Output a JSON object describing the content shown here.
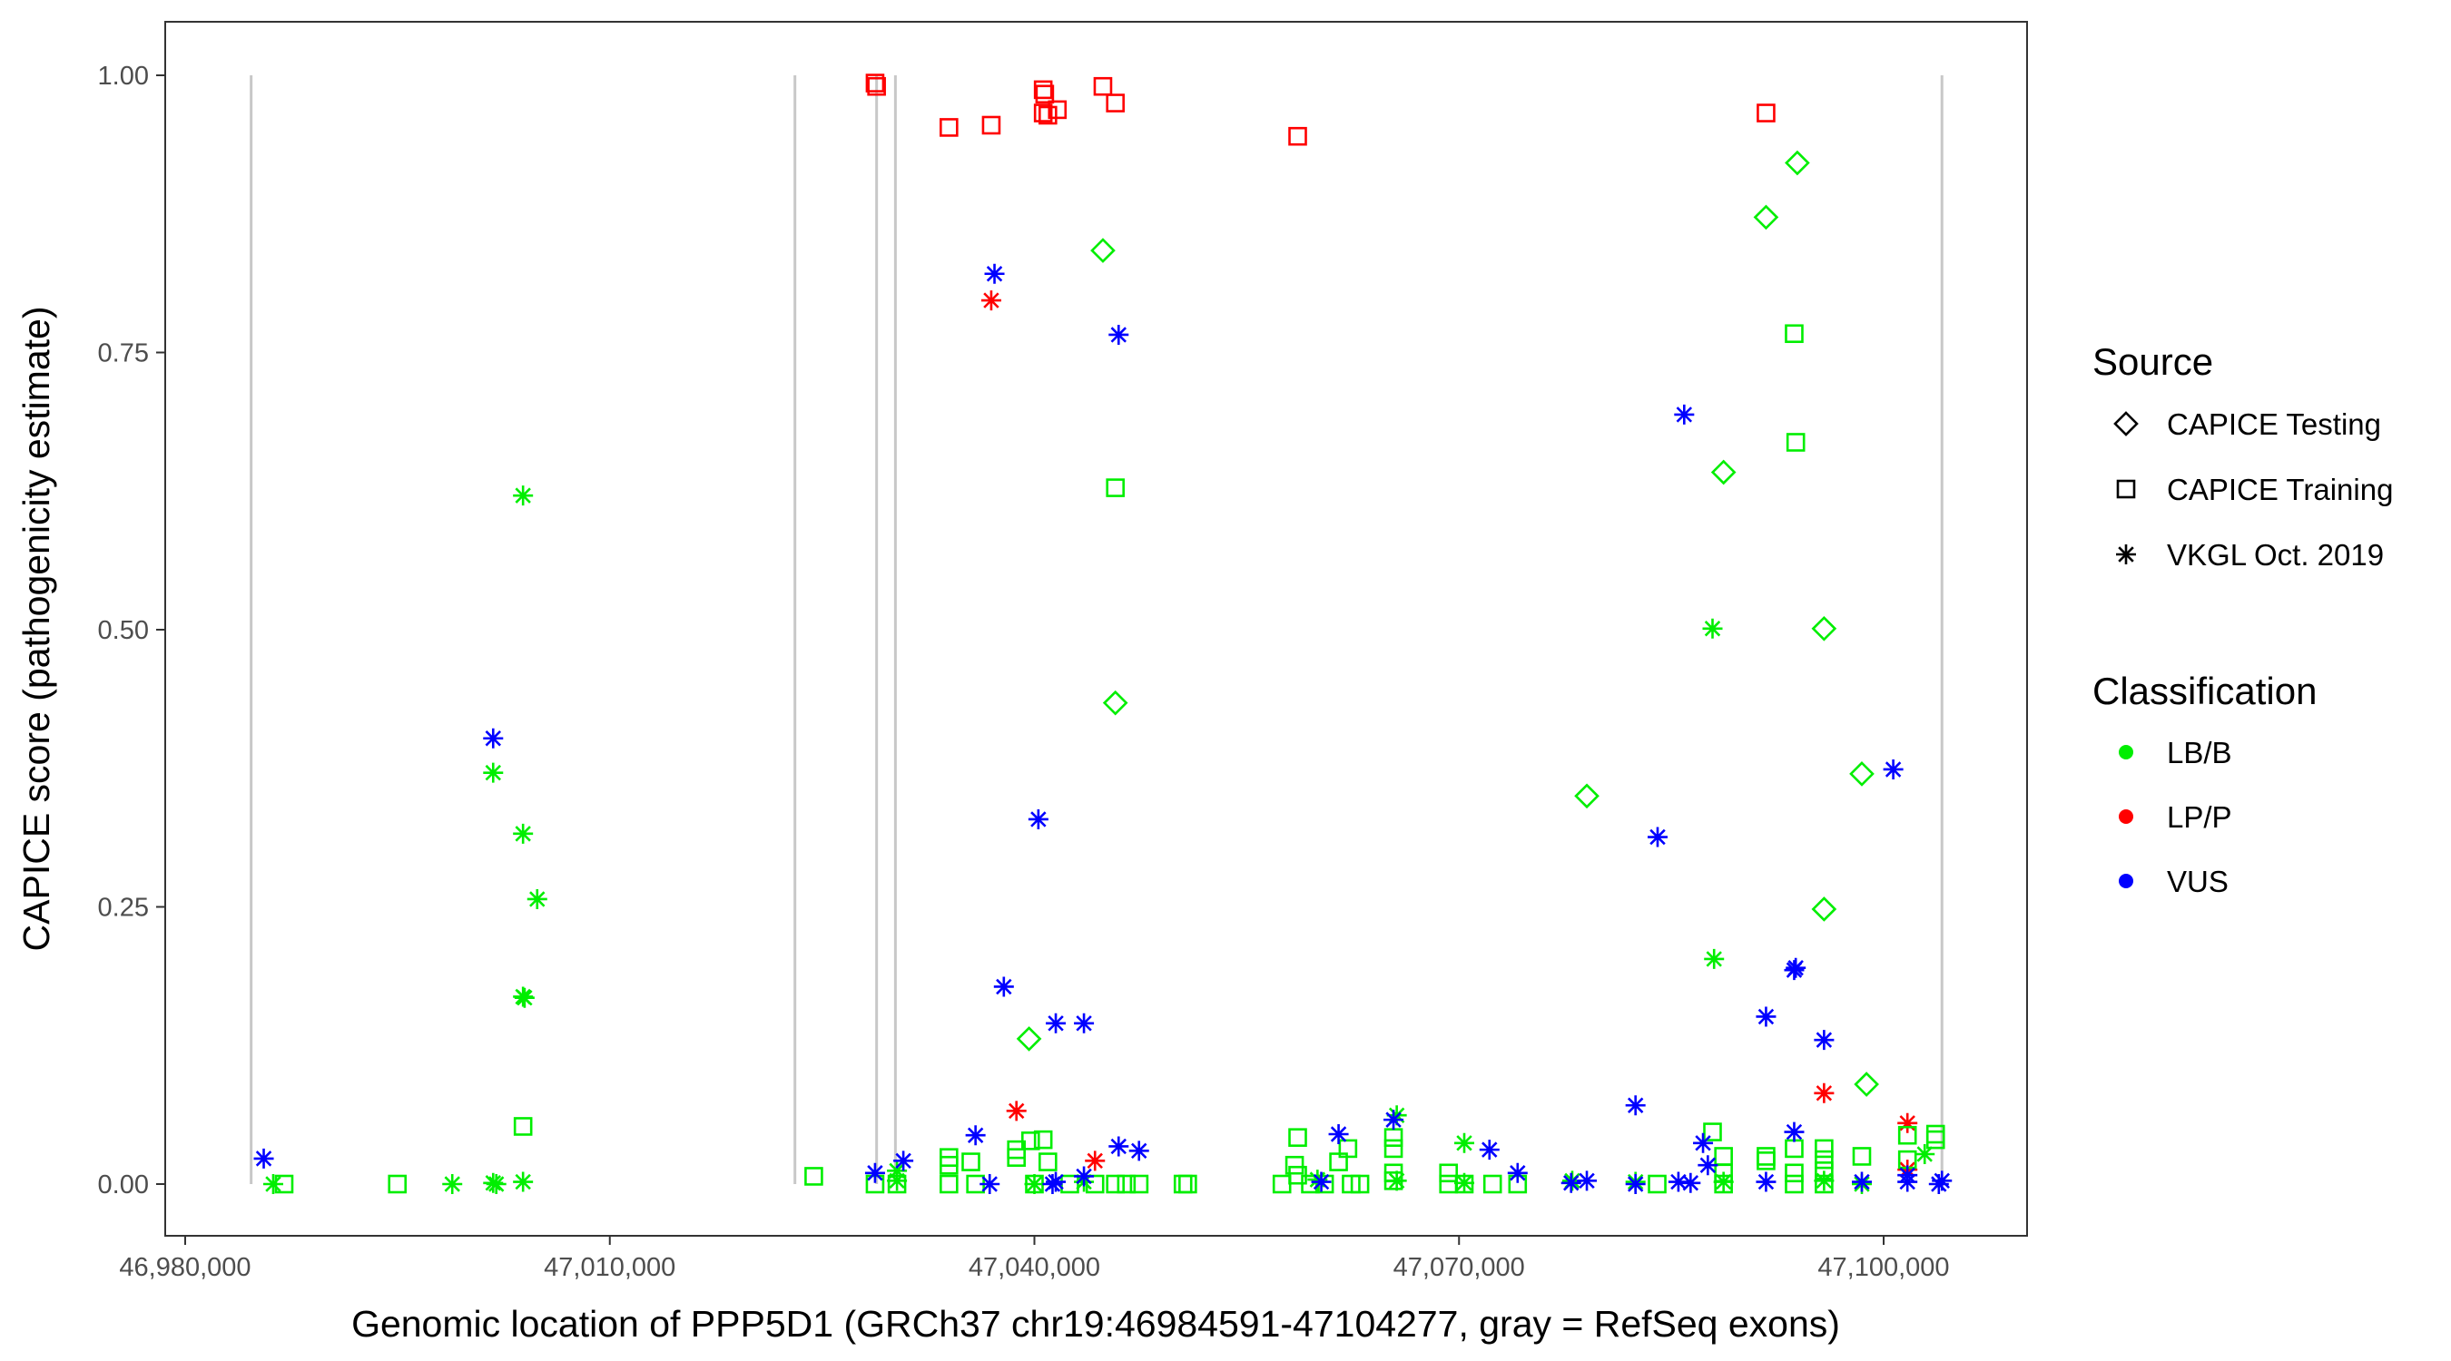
{
  "chart_data": {
    "type": "scatter",
    "xlabel": "Genomic location of PPP5D1 (GRCh37 chr19:46984591-47104277, gray = RefSeq exons)",
    "ylabel": "CAPICE score (pathogenicity estimate)",
    "xlim": [
      46976000,
      47111000
    ],
    "ylim": [
      -0.045,
      1.05
    ],
    "x_ticks": [
      46980000,
      47010000,
      47040000,
      47070000,
      47100000
    ],
    "x_tick_labels": [
      "46,980,000",
      "47,010,000",
      "47,040,000",
      "47,070,000",
      "47,100,000"
    ],
    "y_ticks": [
      0,
      0.25,
      0.5,
      0.75,
      1.0
    ],
    "y_tick_labels": [
      "0.00",
      "0.25",
      "0.50",
      "0.75",
      "1.00"
    ],
    "grid": false,
    "exon_lines": [
      46984660,
      47023080,
      47028850,
      47030180,
      47104120
    ],
    "colors": {
      "B": "#00ee00",
      "P": "#ff0000",
      "U": "#0000ff",
      "exon": "#c8c8c8"
    },
    "legend": {
      "position": "right",
      "source_title": "Source",
      "source_items": [
        {
          "key": "T",
          "label": "CAPICE Testing",
          "shape": "diamond"
        },
        {
          "key": "R",
          "label": "CAPICE Training",
          "shape": "square"
        },
        {
          "key": "V",
          "label": "VKGL Oct. 2019",
          "shape": "asterisk"
        }
      ],
      "class_title": "Classification",
      "class_items": [
        {
          "key": "B",
          "label": "LB/B"
        },
        {
          "key": "P",
          "label": "LP/P"
        },
        {
          "key": "U",
          "label": "VUS"
        }
      ]
    },
    "series": [
      {
        "source": "R",
        "class": "P",
        "points": [
          [
            47028740,
            0.993
          ],
          [
            47028850,
            0.99
          ],
          [
            47033960,
            0.953
          ],
          [
            47036950,
            0.955
          ],
          [
            47040620,
            0.987
          ],
          [
            47040730,
            0.983
          ],
          [
            47040620,
            0.966
          ],
          [
            47040950,
            0.964
          ],
          [
            47041620,
            0.969
          ],
          [
            47044840,
            0.99
          ],
          [
            47045720,
            0.975
          ],
          [
            47058600,
            0.945
          ],
          [
            47091690,
            0.966
          ]
        ]
      },
      {
        "source": "V",
        "class": "P",
        "points": [
          [
            47036950,
            0.797
          ],
          [
            47038730,
            0.066
          ],
          [
            47044280,
            0.021
          ],
          [
            47095790,
            0.082
          ],
          [
            47101680,
            0.055
          ],
          [
            47101680,
            0.013
          ]
        ]
      },
      {
        "source": "T",
        "class": "B",
        "points": [
          [
            47044840,
            0.842
          ],
          [
            47093900,
            0.921
          ],
          [
            47091690,
            0.872
          ],
          [
            47088690,
            0.642
          ],
          [
            47095790,
            0.501
          ],
          [
            47045720,
            0.434
          ],
          [
            47079030,
            0.35
          ],
          [
            47098460,
            0.37
          ],
          [
            47095790,
            0.248
          ],
          [
            47039620,
            0.131
          ],
          [
            47098790,
            0.09
          ]
        ]
      },
      {
        "source": "R",
        "class": "B",
        "points": [
          [
            47093680,
            0.767
          ],
          [
            47093790,
            0.669
          ],
          [
            47045720,
            0.628
          ],
          [
            47003870,
            0.052
          ],
          [
            46986990,
            0
          ],
          [
            46994990,
            0
          ],
          [
            47024410,
            0.007
          ],
          [
            47028740,
            0
          ],
          [
            47030290,
            0
          ],
          [
            47033960,
            0.024
          ],
          [
            47033960,
            0.017
          ],
          [
            47033960,
            0
          ],
          [
            47035510,
            0.02
          ],
          [
            47035840,
            0
          ],
          [
            47038730,
            0.031
          ],
          [
            47038730,
            0.024
          ],
          [
            47039730,
            0.039
          ],
          [
            47040620,
            0.04
          ],
          [
            47040950,
            0.02
          ],
          [
            47040000,
            0
          ],
          [
            47042500,
            0
          ],
          [
            47044280,
            0
          ],
          [
            47045720,
            0
          ],
          [
            47046500,
            0
          ],
          [
            47047400,
            0
          ],
          [
            47050500,
            0
          ],
          [
            47050830,
            0
          ],
          [
            47057490,
            0
          ],
          [
            47058380,
            0.017
          ],
          [
            47058600,
            0.042
          ],
          [
            47058600,
            0.008
          ],
          [
            47059500,
            0
          ],
          [
            47060500,
            0
          ],
          [
            47061490,
            0.02
          ],
          [
            47062150,
            0.032
          ],
          [
            47062380,
            0
          ],
          [
            47063000,
            0
          ],
          [
            47065370,
            0.042
          ],
          [
            47065370,
            0.032
          ],
          [
            47065370,
            0.01
          ],
          [
            47065370,
            0.003
          ],
          [
            47069260,
            0.01
          ],
          [
            47069260,
            0
          ],
          [
            47070370,
            0
          ],
          [
            47072370,
            0
          ],
          [
            47074140,
            0
          ],
          [
            47084000,
            0
          ],
          [
            47087910,
            0.047
          ],
          [
            47088690,
            0.025
          ],
          [
            47088690,
            0.01
          ],
          [
            47088690,
            0
          ],
          [
            47091690,
            0.025
          ],
          [
            47091690,
            0.021
          ],
          [
            47093680,
            0.032
          ],
          [
            47093680,
            0.01
          ],
          [
            47093680,
            0
          ],
          [
            47095790,
            0.032
          ],
          [
            47095790,
            0.022
          ],
          [
            47095790,
            0.012
          ],
          [
            47095790,
            0
          ],
          [
            47098460,
            0.025
          ],
          [
            47101680,
            0.044
          ],
          [
            47101680,
            0.022
          ],
          [
            47103670,
            0.045
          ],
          [
            47103670,
            0.04
          ]
        ]
      },
      {
        "source": "V",
        "class": "B",
        "points": [
          [
            47003870,
            0.621
          ],
          [
            47001760,
            0.371
          ],
          [
            47003870,
            0.316
          ],
          [
            47004870,
            0.257
          ],
          [
            47003870,
            0.169
          ],
          [
            47003980,
            0.168
          ],
          [
            47087910,
            0.501
          ],
          [
            47088020,
            0.203
          ],
          [
            47065600,
            0.062
          ],
          [
            47070370,
            0.037
          ],
          [
            46986220,
            0
          ],
          [
            46998870,
            0
          ],
          [
            47001980,
            0
          ],
          [
            47001760,
            0.001
          ],
          [
            47003870,
            0.002
          ],
          [
            47030290,
            0.012
          ],
          [
            47030290,
            0.003
          ],
          [
            47040000,
            0
          ],
          [
            47043500,
            0.002
          ],
          [
            47060000,
            0.004
          ],
          [
            47065600,
            0.003
          ],
          [
            47070370,
            0.001
          ],
          [
            47078000,
            0.003
          ],
          [
            47082470,
            0.002
          ],
          [
            47088690,
            0.002
          ],
          [
            47095790,
            0.003
          ],
          [
            47102900,
            0.027
          ],
          [
            47098460,
            0
          ]
        ]
      },
      {
        "source": "V",
        "class": "U",
        "points": [
          [
            46985550,
            0.023
          ],
          [
            47001760,
            0.402
          ],
          [
            47037180,
            0.821
          ],
          [
            47045950,
            0.766
          ],
          [
            47040280,
            0.329
          ],
          [
            47037840,
            0.178
          ],
          [
            47041510,
            0.145
          ],
          [
            47043500,
            0.145
          ],
          [
            47035840,
            0.044
          ],
          [
            47028740,
            0.01
          ],
          [
            47030740,
            0.021
          ],
          [
            47036840,
            0
          ],
          [
            47041280,
            0
          ],
          [
            47041510,
            0.002
          ],
          [
            47045950,
            0.034
          ],
          [
            47047390,
            0.03
          ],
          [
            47043500,
            0.007
          ],
          [
            47085910,
            0.694
          ],
          [
            47084030,
            0.313
          ],
          [
            47100680,
            0.374
          ],
          [
            47093680,
            0.193
          ],
          [
            47093790,
            0.195
          ],
          [
            47091690,
            0.151
          ],
          [
            47095790,
            0.13
          ],
          [
            47082470,
            0.071
          ],
          [
            47087240,
            0.037
          ],
          [
            47087580,
            0.017
          ],
          [
            47093680,
            0.047
          ],
          [
            47061490,
            0.045
          ],
          [
            47065370,
            0.058
          ],
          [
            47072150,
            0.031
          ],
          [
            47074140,
            0.01
          ],
          [
            47060270,
            0.002
          ],
          [
            47077920,
            0.001
          ],
          [
            47079030,
            0.003
          ],
          [
            47082470,
            0
          ],
          [
            47086360,
            0.001
          ],
          [
            47085500,
            0.002
          ],
          [
            47091690,
            0.002
          ],
          [
            47098460,
            0.002
          ],
          [
            47101680,
            0.002
          ],
          [
            47101680,
            0.008
          ],
          [
            47104120,
            0.003
          ],
          [
            47103900,
            0
          ]
        ]
      }
    ]
  }
}
